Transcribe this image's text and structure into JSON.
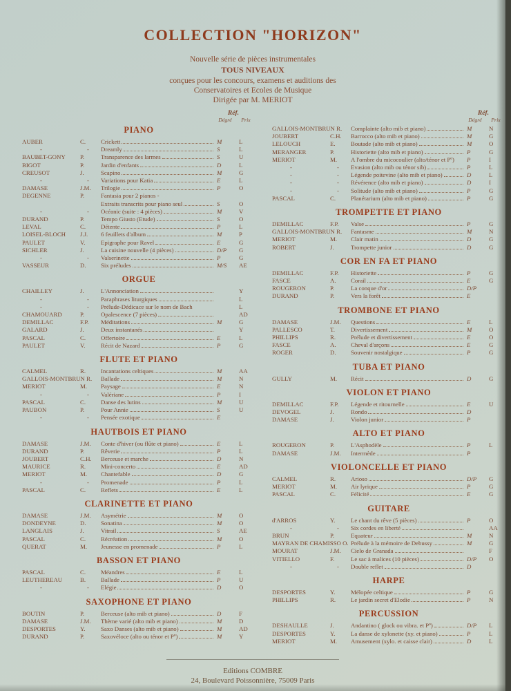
{
  "header": {
    "title": "COLLECTION \"HORIZON\"",
    "line1": "Nouvelle série de pièces instrumentales",
    "line2": "TOUS NIVEAUX",
    "line3": "conçues pour les concours, examens et auditions des",
    "line4": "Conservatoires et Ecoles de Musique",
    "line5": "Dirigée par M. MERIOT"
  },
  "ref_header": {
    "ref": "Réf.",
    "degre": "Dégré",
    "prix": "Prix"
  },
  "colors": {
    "page_bg": "#c6d2cc",
    "heading": "#9b3c1c",
    "body_text": "#7c452e",
    "backdrop": "#41423a"
  },
  "columns": [
    {
      "sections": [
        {
          "title": "PIANO",
          "rows": [
            {
              "a": "AUBER",
              "i": "C.",
              "t": "Crickett",
              "d": "M",
              "p": "L"
            },
            {
              "a": "-",
              "i": "-",
              "t": "Dreamly",
              "d": "S",
              "p": "L"
            },
            {
              "a": "BAUBET-GONY",
              "i": "P.",
              "t": "Transparence des larmes",
              "d": "S",
              "p": "U"
            },
            {
              "a": "BIGOT",
              "i": "P.",
              "t": "Jardin d'enfants",
              "d": "D",
              "p": "L"
            },
            {
              "a": "CREUSOT",
              "i": "J.",
              "t": "Scapino",
              "d": "M",
              "p": "G"
            },
            {
              "a": "-",
              "i": "-",
              "t": "Variations pour Katia",
              "d": "E",
              "p": "L"
            },
            {
              "a": "DAMASE",
              "i": "J.M.",
              "t": "Trilogie",
              "d": "P",
              "p": "O"
            },
            {
              "a": "DEGENNE",
              "i": "P.",
              "t": "Fantasia pour 2 pianos -",
              "d": "",
              "p": "",
              "nl": true
            },
            {
              "a": "",
              "i": "",
              "t": "Extraits transcrits pour piano seul",
              "d": "S",
              "p": "O"
            },
            {
              "a": "-",
              "i": "-",
              "t": "Océanic (suite : 4 pièces)",
              "d": "M",
              "p": "V"
            },
            {
              "a": "DURAND",
              "i": "P.",
              "t": "Tempo Giusto (Etude)",
              "d": "S",
              "p": "O"
            },
            {
              "a": "LEVAL",
              "i": "C.",
              "t": "Détente",
              "d": "P",
              "p": "L"
            },
            {
              "a": "LOISEL-BLOCH",
              "i": "J.J.",
              "t": "6 feuillets d'album",
              "d": "M",
              "p": "P"
            },
            {
              "a": "PAULET",
              "i": "V.",
              "t": "Epigraphe pour Ravel",
              "d": "E",
              "p": "G"
            },
            {
              "a": "SICHLER",
              "i": "J.",
              "t": "La cuisine nouvelle (4 pièces)",
              "d": "D/P",
              "p": "G"
            },
            {
              "a": "-",
              "i": "-",
              "t": "Valserinette",
              "d": "P",
              "p": "G"
            },
            {
              "a": "VASSEUR",
              "i": "D.",
              "t": "Six préludes",
              "d": "M/S",
              "p": "AE"
            }
          ]
        },
        {
          "title": "ORGUE",
          "rows": [
            {
              "a": "CHAILLEY",
              "i": "J.",
              "t": "L'Annonciation",
              "d": "",
              "p": "Y"
            },
            {
              "a": "-",
              "i": "-",
              "t": "Paraphrases liturgiques",
              "d": "",
              "p": "L"
            },
            {
              "a": "-",
              "i": "-",
              "t": "Prélude-Dédicace  sur le nom de Bach",
              "d": "",
              "p": "L",
              "nl": true
            },
            {
              "a": "CHAMOUARD",
              "i": "P.",
              "t": "Opalescence (7 pièces)",
              "d": "",
              "p": "AD"
            },
            {
              "a": "DEMILLAC",
              "i": "F.P.",
              "t": "Méditations",
              "d": "M",
              "p": "G"
            },
            {
              "a": "GALARD",
              "i": "J.",
              "t": "Deux instantanés",
              "d": "",
              "p": "Y"
            },
            {
              "a": "PASCAL",
              "i": "C.",
              "t": "Offertoire",
              "d": "E",
              "p": "L"
            },
            {
              "a": "PAULET",
              "i": "V.",
              "t": "Récit de Nazard",
              "d": "P",
              "p": "G"
            }
          ]
        },
        {
          "title": "FLUTE ET PIANO",
          "rows": [
            {
              "a": "CALMEL",
              "i": "R.",
              "t": "Incantations celtiques",
              "d": "M",
              "p": "AA"
            },
            {
              "a": "GALLOIS-MONTBRUN",
              "i": "R.",
              "t": "Ballade",
              "d": "M",
              "p": "N"
            },
            {
              "a": "MERIOT",
              "i": "M.",
              "t": "Paysage",
              "d": "E",
              "p": "N"
            },
            {
              "a": "-",
              "i": "-",
              "t": "Valériane",
              "d": "P",
              "p": "I"
            },
            {
              "a": "PASCAL",
              "i": "C.",
              "t": "Danse des lutins",
              "d": "M",
              "p": "U"
            },
            {
              "a": "PAUBON",
              "i": "P.",
              "t": "Pour Annie",
              "d": "S",
              "p": "U"
            },
            {
              "a": "-",
              "i": "-",
              "t": "Pensée exotique",
              "d": "E",
              "p": ""
            }
          ]
        },
        {
          "title": "HAUTBOIS ET PIANO",
          "rows": [
            {
              "a": "DAMASE",
              "i": "J.M.",
              "t": "Conte d'hiver (ou flûte et piano)",
              "d": "E",
              "p": "L"
            },
            {
              "a": "DURAND",
              "i": "P.",
              "t": "Rêverie",
              "d": "P",
              "p": "L"
            },
            {
              "a": "JOUBERT",
              "i": "C.H.",
              "t": "Berceuse et marche",
              "d": "D",
              "p": "N"
            },
            {
              "a": "MAURICE",
              "i": "R.",
              "t": "Mini-concerto",
              "d": "E",
              "p": "AD"
            },
            {
              "a": "MERIOT",
              "i": "M.",
              "t": "Chantefable",
              "d": "D",
              "p": "G"
            },
            {
              "a": "-",
              "i": "-",
              "t": "Promenade",
              "d": "P",
              "p": "L"
            },
            {
              "a": "PASCAL",
              "i": "C.",
              "t": "Reflets",
              "d": "E",
              "p": "L"
            }
          ]
        },
        {
          "title": "CLARINETTE ET PIANO",
          "rows": [
            {
              "a": "DAMASE",
              "i": "J.M.",
              "t": "Asymétrie",
              "d": "M",
              "p": "O"
            },
            {
              "a": "DONDEYNE",
              "i": "D.",
              "t": "Sonatina",
              "d": "M",
              "p": "O"
            },
            {
              "a": "LANGLAIS",
              "i": "J.",
              "t": "Vitrail",
              "d": "S",
              "p": "AE"
            },
            {
              "a": "PASCAL",
              "i": "C.",
              "t": "Récréation",
              "d": "M",
              "p": "O"
            },
            {
              "a": "QUERAT",
              "i": "M.",
              "t": "Jeunesse en promenade",
              "d": "P",
              "p": "L"
            }
          ]
        },
        {
          "title": "BASSON ET PIANO",
          "rows": [
            {
              "a": "PASCAL",
              "i": "C.",
              "t": "Méandres",
              "d": "E",
              "p": "L"
            },
            {
              "a": "LEUTHEREAU",
              "i": "B.",
              "t": "Ballade",
              "d": "P",
              "p": "U"
            },
            {
              "a": "-",
              "i": "-",
              "t": "Elégie",
              "d": "D",
              "p": "O"
            }
          ]
        },
        {
          "title": "SAXOPHONE ET PIANO",
          "rows": [
            {
              "a": "BOUTIN",
              "i": "P.",
              "t": "Berceuse (alto mib et piano)",
              "d": "D",
              "p": "F"
            },
            {
              "a": "DAMASE",
              "i": "J.M.",
              "t": "Thème varié (alto mib et piano)",
              "d": "M",
              "p": "D"
            },
            {
              "a": "DESPORTES",
              "i": "Y.",
              "t": "Saxo Danses (alto mib et piano)",
              "d": "M",
              "p": "AD"
            },
            {
              "a": "DURAND",
              "i": "P.",
              "t": "Saxovéloce (alto ou ténor et Pº)",
              "d": "M",
              "p": "Y"
            }
          ]
        }
      ]
    },
    {
      "sections": [
        {
          "title": "",
          "rows": [
            {
              "a": "GALLOIS-MONTBRUN",
              "i": "R.",
              "t": "Complainte (alto mib et piano)",
              "d": "M",
              "p": "N"
            },
            {
              "a": "JOUBERT",
              "i": "C.H.",
              "t": "Barrocco (alto mib et piano)",
              "d": "M",
              "p": "G"
            },
            {
              "a": "LELOUCH",
              "i": "E.",
              "t": "Boutade (alto mib et piano)",
              "d": "M",
              "p": "O"
            },
            {
              "a": "MERANGER",
              "i": "P.",
              "t": "Historiette (alto mib et piano)",
              "d": "P",
              "p": "G"
            },
            {
              "a": "MERIOT",
              "i": "M.",
              "t": "A l'ombre du micocoulier (alto/ténor et Pº)",
              "d": "P",
              "p": "I",
              "nl": true
            },
            {
              "a": "-",
              "i": "-",
              "t": "Evasion (alto mib ou ténor sib)",
              "d": "P",
              "p": "L"
            },
            {
              "a": "-",
              "i": "-",
              "t": "Légende poitevine (alto mib et piano)",
              "d": "D",
              "p": "L"
            },
            {
              "a": "-",
              "i": "-",
              "t": "Révérence (alto mib et piano)",
              "d": "D",
              "p": "I"
            },
            {
              "a": "-",
              "i": "-",
              "t": "Solitude (alto mib et piano)",
              "d": "P",
              "p": "G"
            },
            {
              "a": "PASCAL",
              "i": "C.",
              "t": "Planétarium (alto mib et piano)",
              "d": "P",
              "p": "G"
            }
          ]
        },
        {
          "title": "TROMPETTE ET PIANO",
          "rows": [
            {
              "a": "DEMILLAC",
              "i": "F.P.",
              "t": "Valse",
              "d": "P",
              "p": "G"
            },
            {
              "a": "GALLOIS-MONTBRUN",
              "i": "R.",
              "t": "Fantasme",
              "d": "M",
              "p": "N"
            },
            {
              "a": "MERIOT",
              "i": "M.",
              "t": "Clair matin",
              "d": "D",
              "p": "G"
            },
            {
              "a": "ROBERT",
              "i": "J.",
              "t": "Trompette junior",
              "d": "D",
              "p": "G"
            }
          ]
        },
        {
          "title": "COR EN FA ET PIANO",
          "rows": [
            {
              "a": "DEMILLAC",
              "i": "F.P.",
              "t": "Historiette",
              "d": "P",
              "p": "G"
            },
            {
              "a": "FASCE",
              "i": "A.",
              "t": "Corail",
              "d": "E",
              "p": "G"
            },
            {
              "a": "ROUGERON",
              "i": "P.",
              "t": "La conque d'or",
              "d": "D/P",
              "p": ""
            },
            {
              "a": "DURAND",
              "i": "P.",
              "t": "Vers la forêt",
              "d": "E",
              "p": ""
            }
          ]
        },
        {
          "title": "TROMBONE ET PIANO",
          "rows": [
            {
              "a": "DAMASE",
              "i": "J.M.",
              "t": "Questions",
              "d": "E",
              "p": "L"
            },
            {
              "a": "PALLESCO",
              "i": "T.",
              "t": "Divertissement",
              "d": "M",
              "p": "O"
            },
            {
              "a": "PHILLIPS",
              "i": "R.",
              "t": "Prélude et divertissement",
              "d": "E",
              "p": "O"
            },
            {
              "a": "FASCE",
              "i": "A.",
              "t": "Cheval d'arçons",
              "d": "E",
              "p": "G"
            },
            {
              "a": "ROGER",
              "i": "D.",
              "t": "Souvenir nostalgique",
              "d": "P",
              "p": "G"
            }
          ]
        },
        {
          "title": "TUBA ET PIANO",
          "rows": [
            {
              "a": "GULLY",
              "i": "M.",
              "t": "Récit",
              "d": "D",
              "p": "G"
            }
          ]
        },
        {
          "title": "VIOLON ET PIANO",
          "rows": [
            {
              "a": "DEMILLAC",
              "i": "F.P.",
              "t": "Légende et ritournelle",
              "d": "E",
              "p": "U"
            },
            {
              "a": "DEVOGEL",
              "i": "J.",
              "t": "Rondo",
              "d": "D",
              "p": ""
            },
            {
              "a": "DAMASE",
              "i": "J.",
              "t": "Violon junior",
              "d": "P",
              "p": ""
            }
          ]
        },
        {
          "title": "ALTO ET PIANO",
          "rows": [
            {
              "a": "ROUGERON",
              "i": "P.",
              "t": "L'Asphodèle",
              "d": "P",
              "p": "L"
            },
            {
              "a": "DAMASE",
              "i": "J.M.",
              "t": "Intermède",
              "d": "P",
              "p": ""
            }
          ]
        },
        {
          "title": "VIOLONCELLE ET PIANO",
          "rows": [
            {
              "a": "CALMEL",
              "i": "R.",
              "t": "Arioso",
              "d": "D/P",
              "p": "G"
            },
            {
              "a": "MERIOT",
              "i": "M.",
              "t": "Air lyrique",
              "d": "P",
              "p": "G"
            },
            {
              "a": "PASCAL",
              "i": "C.",
              "t": "Félicité",
              "d": "E",
              "p": "G"
            }
          ]
        },
        {
          "title": "GUITARE",
          "rows": [
            {
              "a": "d'ARROS",
              "i": "Y.",
              "t": "Le chant du rêve (5 pièces)",
              "d": "P",
              "p": "O"
            },
            {
              "a": "-",
              "i": "-",
              "t": "Six cordes en liberté",
              "d": "",
              "p": "AA"
            },
            {
              "a": "BRUN",
              "i": "P.",
              "t": "Equateur",
              "d": "M",
              "p": "N"
            },
            {
              "a": "MAYRAN DE CHAMISSO",
              "i": "O.",
              "t": "Prélude à la mémoire de Debussy",
              "d": "M",
              "p": "G"
            },
            {
              "a": "MOURAT",
              "i": "J.M.",
              "t": "Cielo de Granada",
              "d": "",
              "p": "F"
            },
            {
              "a": "VITIELLO",
              "i": "F.",
              "t": "Le sac à malices (10 pièces)",
              "d": "D/P",
              "p": "O"
            },
            {
              "a": "-",
              "i": "-",
              "t": "Double reflet",
              "d": "D",
              "p": ""
            }
          ]
        },
        {
          "title": "HARPE",
          "rows": [
            {
              "a": "DESPORTES",
              "i": "Y.",
              "t": "Mélopée celtique",
              "d": "P",
              "p": "G"
            },
            {
              "a": "PHILLIPS",
              "i": "R.",
              "t": "Le jardin secret d'Elodie",
              "d": "P",
              "p": "N"
            }
          ]
        },
        {
          "title": "PERCUSSION",
          "rows": [
            {
              "a": "DESHAULLE",
              "i": "J.",
              "t": "Andantino ( glock ou vibra. et Pº)",
              "d": "D/P",
              "p": "L"
            },
            {
              "a": "DESPORTES",
              "i": "Y.",
              "t": "La danse de xylonette (xy. et piano)",
              "d": "P",
              "p": "L"
            },
            {
              "a": "MERIOT",
              "i": "M.",
              "t": "Amusement (xylo. et caisse clair)",
              "d": "D",
              "p": "L"
            }
          ]
        }
      ]
    }
  ],
  "footer": {
    "publisher": "Editions COMBRE",
    "address": "24, Boulevard Poissonnière, 75009 Paris"
  }
}
